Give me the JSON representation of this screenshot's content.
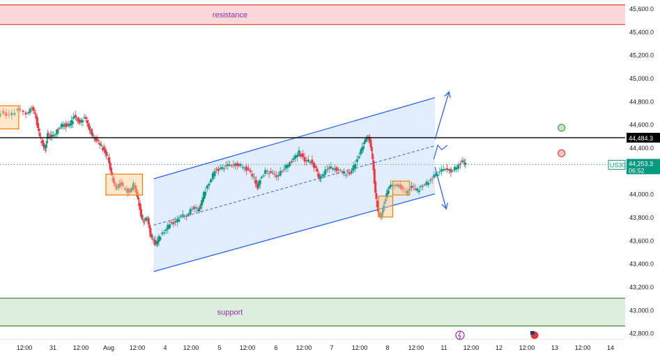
{
  "chart_data": {
    "type": "candlestick",
    "symbol": "US30",
    "last_price": "44,253.3",
    "countdown": "06:52",
    "reference_price": "44,484.3",
    "y_ticks": [
      "45,600.0",
      "45,400.0",
      "45,200.0",
      "45,000.0",
      "44,800.0",
      "44,600.0",
      "44,400.0",
      "44,200.0",
      "44,000.0",
      "43,800.0",
      "43,600.0",
      "43,400.0",
      "43,200.0",
      "43,000.0",
      "42,800.0"
    ],
    "y_tick_values": [
      45600,
      45400,
      45200,
      45000,
      44800,
      44600,
      44400,
      44200,
      44000,
      43800,
      43600,
      43400,
      43200,
      43000,
      42800
    ],
    "ylim": [
      42750,
      45630
    ],
    "x_ticks": [
      "12:00",
      "31",
      "12:00",
      "Aug",
      "12:00",
      "4",
      "12:00",
      "5",
      "12:00",
      "6",
      "12:00",
      "7",
      "12:00",
      "8",
      "12:00",
      "11",
      "12:00",
      "12",
      "12:00",
      "13",
      "12:00",
      "14"
    ],
    "zones": [
      {
        "label": "resistance",
        "low": 45460,
        "high": 45630,
        "color": "#f8c7c7",
        "border": "#e53935"
      },
      {
        "label": "support",
        "low": 42860,
        "high": 43100,
        "color": "#cde8cf",
        "border": "#2e7d32"
      }
    ],
    "channel": {
      "start_index": 2.3,
      "end_index": 7.3,
      "lower_start": 43330,
      "lower_end": 44000,
      "upper_start": 44130,
      "upper_end": 44830
    },
    "projection_arrows": [
      {
        "from_index": 7.3,
        "from_price": 44470,
        "to_index": 7.55,
        "to_price": 44880,
        "direction": "up"
      },
      {
        "from_index": 7.3,
        "from_price": 44230,
        "to_index": 7.5,
        "to_price": 43870,
        "direction": "down"
      }
    ],
    "markers": [
      {
        "index": 9.55,
        "price": 44570,
        "color": "#43a047",
        "kind": "target-up"
      },
      {
        "index": 9.55,
        "price": 44350,
        "color": "#e53935",
        "kind": "target-down"
      }
    ],
    "price_series": [
      [
        -0.6,
        44640
      ],
      [
        -0.4,
        44700
      ],
      [
        -0.25,
        44680
      ],
      [
        -0.1,
        44720
      ],
      [
        0.05,
        44700
      ],
      [
        0.15,
        44740
      ],
      [
        0.2,
        44690
      ],
      [
        0.25,
        44560
      ],
      [
        0.3,
        44470
      ],
      [
        0.35,
        44420
      ],
      [
        0.38,
        44380
      ],
      [
        0.42,
        44520
      ],
      [
        0.48,
        44480
      ],
      [
        0.55,
        44520
      ],
      [
        0.62,
        44560
      ],
      [
        0.7,
        44600
      ],
      [
        0.78,
        44580
      ],
      [
        0.85,
        44620
      ],
      [
        0.9,
        44680
      ],
      [
        0.95,
        44640
      ],
      [
        1.0,
        44620
      ],
      [
        1.08,
        44650
      ],
      [
        1.15,
        44590
      ],
      [
        1.2,
        44520
      ],
      [
        1.25,
        44480
      ],
      [
        1.3,
        44460
      ],
      [
        1.38,
        44410
      ],
      [
        1.45,
        44360
      ],
      [
        1.5,
        44300
      ],
      [
        1.55,
        44190
      ],
      [
        1.6,
        44080
      ],
      [
        1.65,
        44060
      ],
      [
        1.72,
        44090
      ],
      [
        1.8,
        44040
      ],
      [
        1.88,
        44010
      ],
      [
        1.95,
        44080
      ],
      [
        2.0,
        44020
      ],
      [
        2.05,
        43900
      ],
      [
        2.1,
        43780
      ],
      [
        2.15,
        43760
      ],
      [
        2.2,
        43800
      ],
      [
        2.25,
        43640
      ],
      [
        2.3,
        43600
      ],
      [
        2.35,
        43560
      ],
      [
        2.4,
        43620
      ],
      [
        2.5,
        43680
      ],
      [
        2.6,
        43740
      ],
      [
        2.7,
        43760
      ],
      [
        2.8,
        43800
      ],
      [
        2.9,
        43820
      ],
      [
        3.0,
        43880
      ],
      [
        3.1,
        43860
      ],
      [
        3.15,
        43900
      ],
      [
        3.2,
        44000
      ],
      [
        3.3,
        44100
      ],
      [
        3.4,
        44200
      ],
      [
        3.5,
        44220
      ],
      [
        3.6,
        44230
      ],
      [
        3.7,
        44260
      ],
      [
        3.8,
        44250
      ],
      [
        3.9,
        44230
      ],
      [
        4.0,
        44200
      ],
      [
        4.1,
        44130
      ],
      [
        4.15,
        44060
      ],
      [
        4.2,
        44120
      ],
      [
        4.3,
        44200
      ],
      [
        4.4,
        44170
      ],
      [
        4.5,
        44160
      ],
      [
        4.6,
        44200
      ],
      [
        4.7,
        44250
      ],
      [
        4.8,
        44300
      ],
      [
        4.9,
        44360
      ],
      [
        5.0,
        44290
      ],
      [
        5.1,
        44280
      ],
      [
        5.2,
        44220
      ],
      [
        5.25,
        44120
      ],
      [
        5.3,
        44160
      ],
      [
        5.4,
        44220
      ],
      [
        5.5,
        44220
      ],
      [
        5.6,
        44200
      ],
      [
        5.7,
        44180
      ],
      [
        5.8,
        44180
      ],
      [
        5.9,
        44260
      ],
      [
        6.0,
        44380
      ],
      [
        6.05,
        44430
      ],
      [
        6.1,
        44500
      ],
      [
        6.15,
        44460
      ],
      [
        6.2,
        44300
      ],
      [
        6.25,
        44000
      ],
      [
        6.3,
        43830
      ],
      [
        6.35,
        43810
      ],
      [
        6.4,
        43900
      ],
      [
        6.45,
        44000
      ],
      [
        6.5,
        44050
      ],
      [
        6.6,
        44090
      ],
      [
        6.7,
        44060
      ],
      [
        6.8,
        44010
      ],
      [
        6.9,
        44060
      ],
      [
        7.0,
        44030
      ],
      [
        7.1,
        44080
      ],
      [
        7.2,
        44100
      ],
      [
        7.3,
        44160
      ],
      [
        7.4,
        44180
      ],
      [
        7.5,
        44230
      ],
      [
        7.6,
        44190
      ],
      [
        7.7,
        44230
      ],
      [
        7.8,
        44280
      ],
      [
        7.85,
        44253
      ]
    ]
  }
}
